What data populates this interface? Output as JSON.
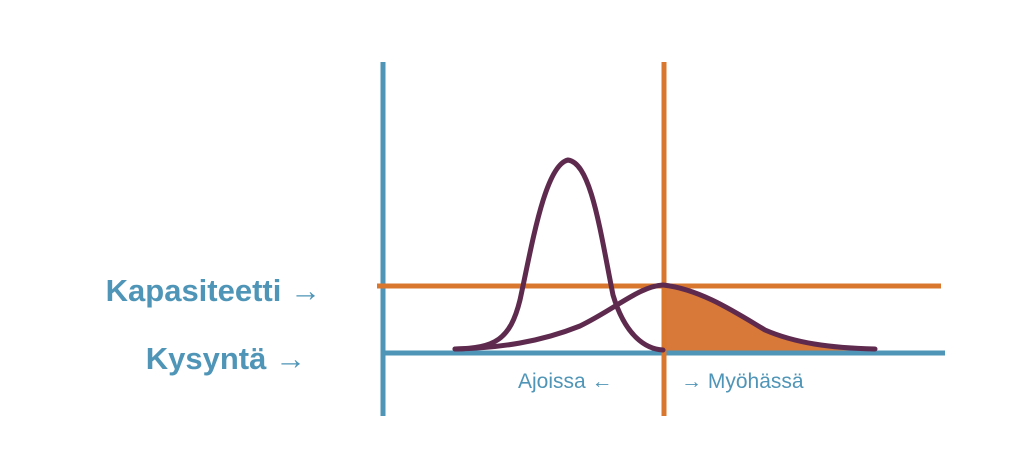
{
  "labels": {
    "capacity": "Kapasiteetti",
    "demand": "Kysyntä",
    "on_time": "Ajoissa",
    "late": "Myöhässä"
  },
  "glyphs": {
    "arrow_right": "→",
    "arrow_left": "←"
  },
  "colors": {
    "blue": "#4f95b7",
    "orange": "#d9772f",
    "curve": "#5e2a4e",
    "fill": "#d8793a"
  }
}
